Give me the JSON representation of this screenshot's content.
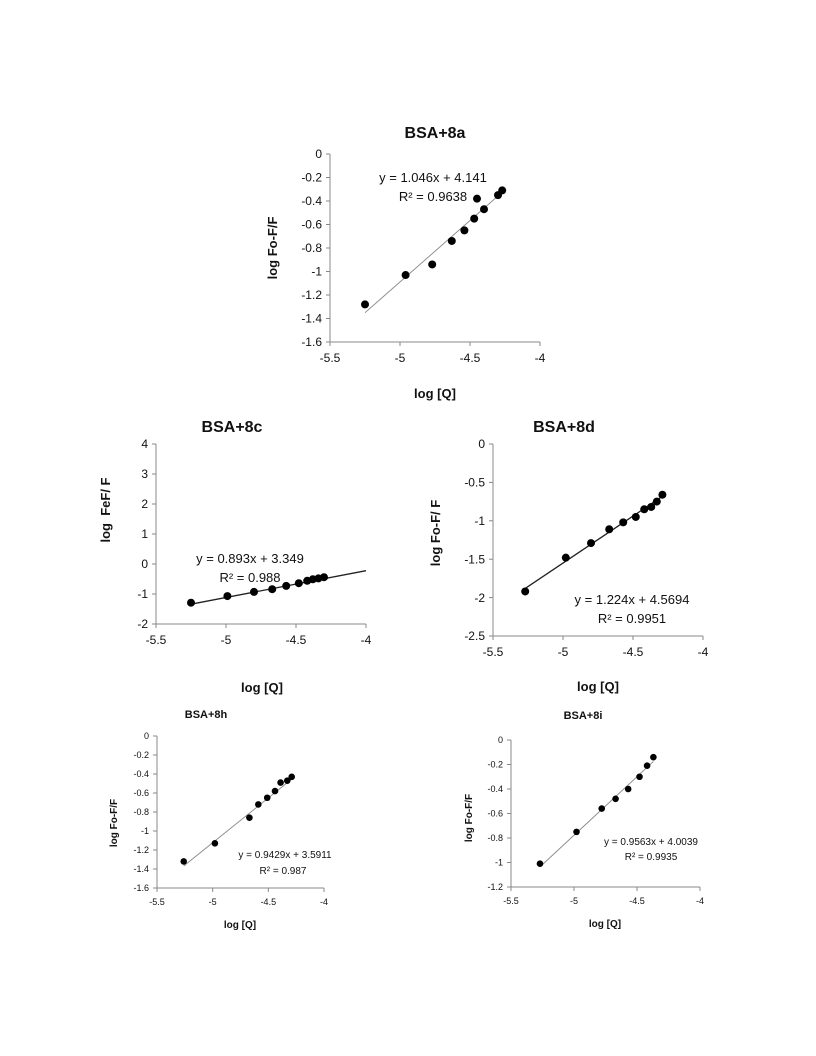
{
  "chart_data": [
    {
      "type": "scatter",
      "title": "BSA+8a",
      "xlabel": "log [Q]",
      "ylabel": "log Fo-F/F",
      "xlim": [
        -5.5,
        -4
      ],
      "ylim": [
        -1.6,
        0
      ],
      "xticks": [
        "-5.5",
        "-5",
        "-4.5",
        "-4"
      ],
      "yticks": [
        "0",
        "-0.2",
        "-0.4",
        "-0.6",
        "-0.8",
        "-1",
        "-1.2",
        "-1.4",
        "-1.6"
      ],
      "grid": false,
      "x": [
        -5.25,
        -4.96,
        -4.77,
        -4.63,
        -4.54,
        -4.47,
        -4.45,
        -4.4,
        -4.3,
        -4.27
      ],
      "y": [
        -1.28,
        -1.03,
        -0.94,
        -0.74,
        -0.65,
        -0.55,
        -0.38,
        -0.47,
        -0.35,
        -0.31
      ],
      "trendline": {
        "slope": 1.046,
        "intercept": 4.141,
        "x_range": [
          -5.25,
          -4.27
        ],
        "color": "#888888"
      },
      "equation": "y = 1.046x + 4.141",
      "r2": "R² = 0.9638"
    },
    {
      "type": "scatter",
      "title": "BSA+8c",
      "xlabel": "log [Q]",
      "ylabel": "log  FeF/ F",
      "xlim": [
        -5.5,
        -4
      ],
      "ylim": [
        -2,
        4
      ],
      "xticks": [
        "-5.5",
        "-5",
        "-4.5",
        "-4"
      ],
      "yticks": [
        "4",
        "3",
        "2",
        "1",
        "0",
        "-1",
        "-2"
      ],
      "grid": false,
      "x": [
        -5.25,
        -4.99,
        -4.8,
        -4.67,
        -4.57,
        -4.48,
        -4.42,
        -4.38,
        -4.34,
        -4.3
      ],
      "y": [
        -1.29,
        -1.07,
        -0.93,
        -0.84,
        -0.73,
        -0.64,
        -0.56,
        -0.51,
        -0.48,
        -0.44
      ],
      "trendline": {
        "slope": 0.893,
        "intercept": 3.349,
        "x_range": [
          -5.25,
          -4.0
        ],
        "color": "#222222"
      },
      "equation": "y = 0.893x + 3.349",
      "r2": "R² = 0.988"
    },
    {
      "type": "scatter",
      "title": "BSA+8d",
      "xlabel": "log [Q]",
      "ylabel": "log Fo-F/ F",
      "xlim": [
        -5.5,
        -4
      ],
      "ylim": [
        -2.5,
        0
      ],
      "xticks": [
        "-5.5",
        "-5",
        "-4.5",
        "-4"
      ],
      "yticks": [
        "0",
        "-0.5",
        "-1",
        "-1.5",
        "-2",
        "-2.5"
      ],
      "grid": false,
      "x": [
        -5.27,
        -4.98,
        -4.8,
        -4.67,
        -4.57,
        -4.48,
        -4.42,
        -4.37,
        -4.33,
        -4.29
      ],
      "y": [
        -1.92,
        -1.48,
        -1.29,
        -1.11,
        -1.02,
        -0.95,
        -0.85,
        -0.82,
        -0.75,
        -0.66
      ],
      "trendline": {
        "slope": 1.224,
        "intercept": 4.5694,
        "x_range": [
          -5.27,
          -4.29
        ],
        "color": "#222222"
      },
      "equation": "y = 1.224x + 4.5694",
      "r2": "R² = 0.9951"
    },
    {
      "type": "scatter",
      "title": "BSA+8h",
      "xlabel": "log [Q]",
      "ylabel": "log Fo-F/F",
      "xlim": [
        -5.5,
        -4
      ],
      "ylim": [
        -1.6,
        0
      ],
      "xticks": [
        "-5.5",
        "-5",
        "-4.5",
        "-4"
      ],
      "yticks": [
        "0",
        "-0.2",
        "-0.4",
        "-0.6",
        "-0.8",
        "-1",
        "-1.2",
        "-1.4",
        "-1.6"
      ],
      "grid": false,
      "x": [
        -5.26,
        -4.98,
        -4.67,
        -4.59,
        -4.51,
        -4.44,
        -4.39,
        -4.33,
        -4.29
      ],
      "y": [
        -1.32,
        -1.13,
        -0.86,
        -0.72,
        -0.65,
        -0.58,
        -0.49,
        -0.47,
        -0.43
      ],
      "trendline": {
        "slope": 0.9429,
        "intercept": 3.5911,
        "x_range": [
          -5.26,
          -4.29
        ],
        "color": "#888888"
      },
      "equation": "y = 0.9429x + 3.5911",
      "r2": "R² = 0.987"
    },
    {
      "type": "scatter",
      "title": "BSA+8i",
      "xlabel": "log [Q]",
      "ylabel": "log Fo-F/F",
      "xlim": [
        -5.5,
        -4
      ],
      "ylim": [
        -1.2,
        0
      ],
      "xticks": [
        "-5.5",
        "-5",
        "-4.5",
        "-4"
      ],
      "yticks": [
        "0",
        "-0.2",
        "-0.4",
        "-0.6",
        "-0.8",
        "-1",
        "-1.2"
      ],
      "grid": false,
      "x": [
        -5.27,
        -4.98,
        -4.78,
        -4.67,
        -4.57,
        -4.48,
        -4.42,
        -4.37
      ],
      "y": [
        -1.01,
        -0.75,
        -0.56,
        -0.48,
        -0.4,
        -0.3,
        -0.21,
        -0.14
      ],
      "trendline": {
        "slope": 0.9563,
        "intercept": 4.0039,
        "x_range": [
          -5.27,
          -4.37
        ],
        "color": "#888888"
      },
      "equation": "y = 0.9563x + 4.0039",
      "r2": "R² = 0.9935"
    }
  ]
}
